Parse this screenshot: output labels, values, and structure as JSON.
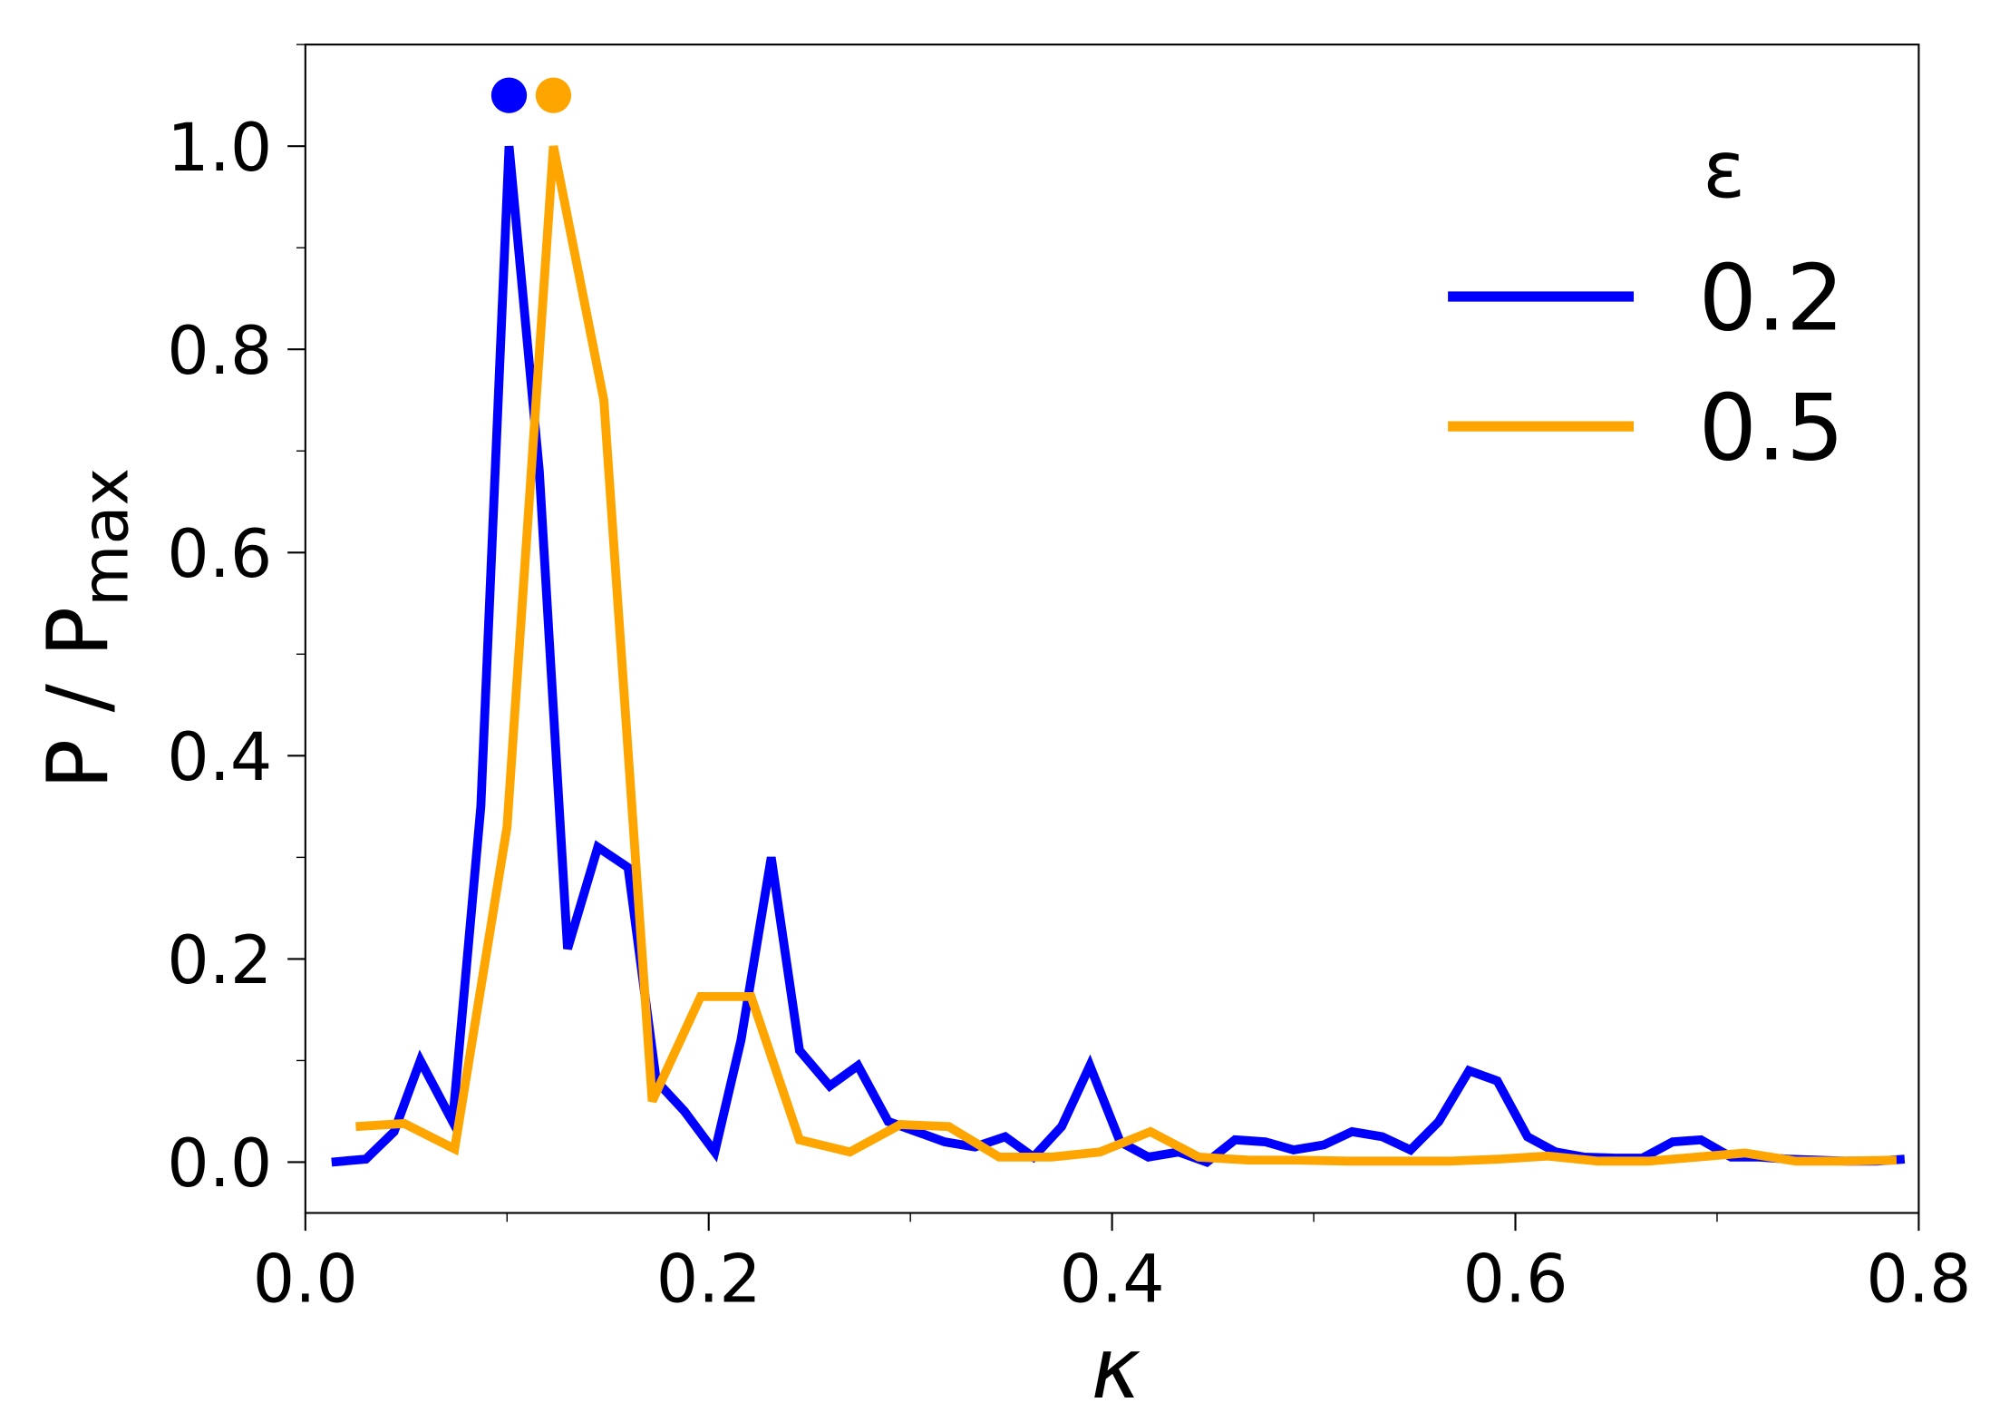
{
  "chart_data": {
    "type": "line",
    "xlabel": "κ",
    "ylabel": "P / P",
    "ylabel_sub": "max",
    "legend_title": "ε",
    "legend": "upper right",
    "xlim": [
      0,
      0.8
    ],
    "ylim": [
      -0.05,
      1.1
    ],
    "xticks": [
      {
        "value": 0,
        "label": "0.0"
      },
      {
        "value": 0.2,
        "label": "0.2"
      },
      {
        "value": 0.4,
        "label": "0.4"
      },
      {
        "value": 0.6,
        "label": "0.6"
      },
      {
        "value": 0.8,
        "label": "0.8"
      }
    ],
    "xminor_ticks": [
      0.1,
      0.3,
      0.5,
      0.7
    ],
    "yticks": [
      {
        "value": 0,
        "label": "0.0"
      },
      {
        "value": 0.2,
        "label": "0.2"
      },
      {
        "value": 0.4,
        "label": "0.4"
      },
      {
        "value": 0.6,
        "label": "0.6"
      },
      {
        "value": 0.8,
        "label": "0.8"
      },
      {
        "value": 1,
        "label": "1.0"
      }
    ],
    "yminor_ticks": [
      0.1,
      0.3,
      0.5,
      0.7,
      0.9,
      1.1
    ],
    "series": [
      {
        "name": "0.2",
        "color": "#0000ff",
        "peak_x": 0.101,
        "peak_y": 1.05,
        "x": [
          0.013,
          0.03,
          0.044,
          0.057,
          0.073,
          0.087,
          0.101,
          0.116,
          0.13,
          0.145,
          0.16,
          0.174,
          0.188,
          0.203,
          0.216,
          0.231,
          0.245,
          0.26,
          0.274,
          0.289,
          0.303,
          0.317,
          0.332,
          0.347,
          0.361,
          0.375,
          0.389,
          0.404,
          0.418,
          0.433,
          0.447,
          0.461,
          0.476,
          0.49,
          0.505,
          0.519,
          0.534,
          0.548,
          0.562,
          0.577,
          0.591,
          0.606,
          0.62,
          0.634,
          0.649,
          0.663,
          0.678,
          0.692,
          0.707,
          0.721,
          0.735,
          0.75,
          0.764,
          0.779,
          0.793
        ],
        "values": [
          0.0,
          0.003,
          0.03,
          0.1,
          0.04,
          0.35,
          1.0,
          0.68,
          0.21,
          0.31,
          0.29,
          0.08,
          0.05,
          0.01,
          0.12,
          0.3,
          0.11,
          0.075,
          0.095,
          0.04,
          0.03,
          0.02,
          0.015,
          0.025,
          0.005,
          0.035,
          0.095,
          0.02,
          0.005,
          0.01,
          0.0,
          0.022,
          0.02,
          0.012,
          0.017,
          0.03,
          0.025,
          0.012,
          0.04,
          0.09,
          0.08,
          0.025,
          0.01,
          0.005,
          0.004,
          0.004,
          0.02,
          0.022,
          0.005,
          0.005,
          0.003,
          0.002,
          0.001,
          0.001,
          0.003
        ]
      },
      {
        "name": "0.5",
        "color": "#ffa500",
        "peak_x": 0.123,
        "peak_y": 1.05,
        "x": [
          0.025,
          0.049,
          0.074,
          0.1,
          0.123,
          0.148,
          0.172,
          0.196,
          0.221,
          0.245,
          0.27,
          0.295,
          0.319,
          0.344,
          0.37,
          0.394,
          0.419,
          0.443,
          0.468,
          0.492,
          0.517,
          0.543,
          0.567,
          0.592,
          0.616,
          0.641,
          0.666,
          0.69,
          0.714,
          0.739,
          0.763,
          0.789
        ],
        "values": [
          0.035,
          0.038,
          0.013,
          0.33,
          1.0,
          0.75,
          0.06,
          0.163,
          0.163,
          0.022,
          0.01,
          0.037,
          0.035,
          0.005,
          0.005,
          0.01,
          0.03,
          0.005,
          0.002,
          0.002,
          0.001,
          0.001,
          0.001,
          0.003,
          0.006,
          0.001,
          0.001,
          0.005,
          0.009,
          0.001,
          0.001,
          0.002
        ]
      }
    ]
  }
}
